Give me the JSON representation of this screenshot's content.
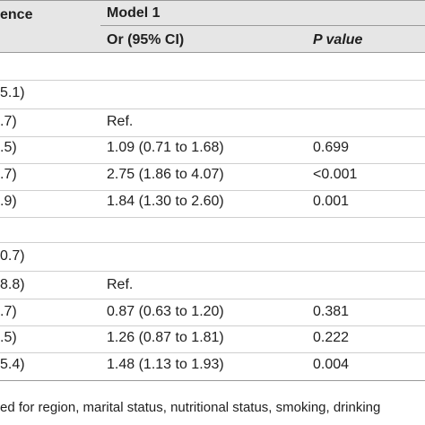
{
  "header": {
    "col0_fragment": "ence",
    "model_label": "Model 1",
    "or_label": "Or (95% CI)",
    "p_label": "P value"
  },
  "rows": [
    {
      "left": "",
      "or": "",
      "p": ""
    },
    {
      "left": "5.1)",
      "or": "",
      "p": ""
    },
    {
      "left": ".7)",
      "or": "Ref.",
      "p": ""
    },
    {
      "left": ".5)",
      "or": "1.09 (0.71 to 1.68)",
      "p": "0.699"
    },
    {
      "left": ".7)",
      "or": "2.75 (1.86 to 4.07)",
      "p": "<0.001"
    },
    {
      "left": ".9)",
      "or": "1.84 (1.30 to 2.60)",
      "p": "0.001"
    },
    {
      "left": "",
      "or": "",
      "p": ""
    },
    {
      "left": "0.7)",
      "or": "",
      "p": ""
    },
    {
      "left": "8.8)",
      "or": "Ref.",
      "p": ""
    },
    {
      "left": ".7)",
      "or": "0.87 (0.63 to 1.20)",
      "p": "0.381"
    },
    {
      "left": ".5)",
      "or": "1.26 (0.87 to 1.81)",
      "p": "0.222"
    },
    {
      "left": "5.4)",
      "or": "1.48 (1.13 to 1.93)",
      "p": "0.004"
    }
  ],
  "footnote": "ed for region, marital status, nutritional status, smoking, drinking"
}
